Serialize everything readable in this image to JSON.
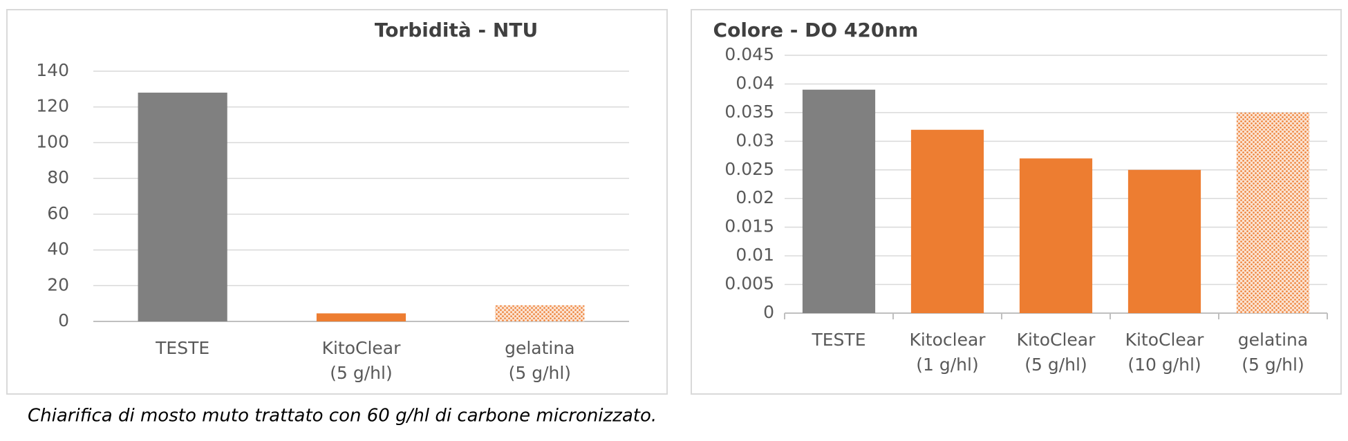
{
  "chart_data": [
    {
      "type": "bar",
      "title": "Torbidità - NTU",
      "categories": [
        [
          "TESTE"
        ],
        [
          "KitoClear",
          "(5 g/hl)"
        ],
        [
          "gelatina",
          "(5 g/hl)"
        ]
      ],
      "values": [
        128,
        4.5,
        9
      ],
      "colors": [
        "#808080",
        "#ed7d31",
        "#f4b183"
      ],
      "patterned": [
        false,
        false,
        true
      ],
      "ylim": [
        0,
        140
      ],
      "yticks": [
        0,
        20,
        40,
        60,
        80,
        100,
        120,
        140
      ],
      "grid": true
    },
    {
      "type": "bar",
      "title": "Colore - DO 420nm",
      "categories": [
        [
          "TESTE"
        ],
        [
          "Kitoclear",
          "(1 g/hl)"
        ],
        [
          "KitoClear",
          "(5 g/hl)"
        ],
        [
          "KitoClear",
          "(10 g/hl)"
        ],
        [
          "gelatina",
          "(5 g/hl)"
        ]
      ],
      "values": [
        0.039,
        0.032,
        0.027,
        0.025,
        0.035
      ],
      "colors": [
        "#808080",
        "#ed7d31",
        "#ed7d31",
        "#ed7d31",
        "#f4b183"
      ],
      "patterned": [
        false,
        false,
        false,
        false,
        true
      ],
      "ylim": [
        0,
        0.045
      ],
      "yticks": [
        0,
        0.005,
        0.01,
        0.015,
        0.02,
        0.025,
        0.03,
        0.035,
        0.04,
        0.045
      ],
      "grid": true,
      "category_ticks": true
    }
  ],
  "caption": "Chiarifica di mosto muto trattato con 60 g/hl di carbone micronizzato."
}
